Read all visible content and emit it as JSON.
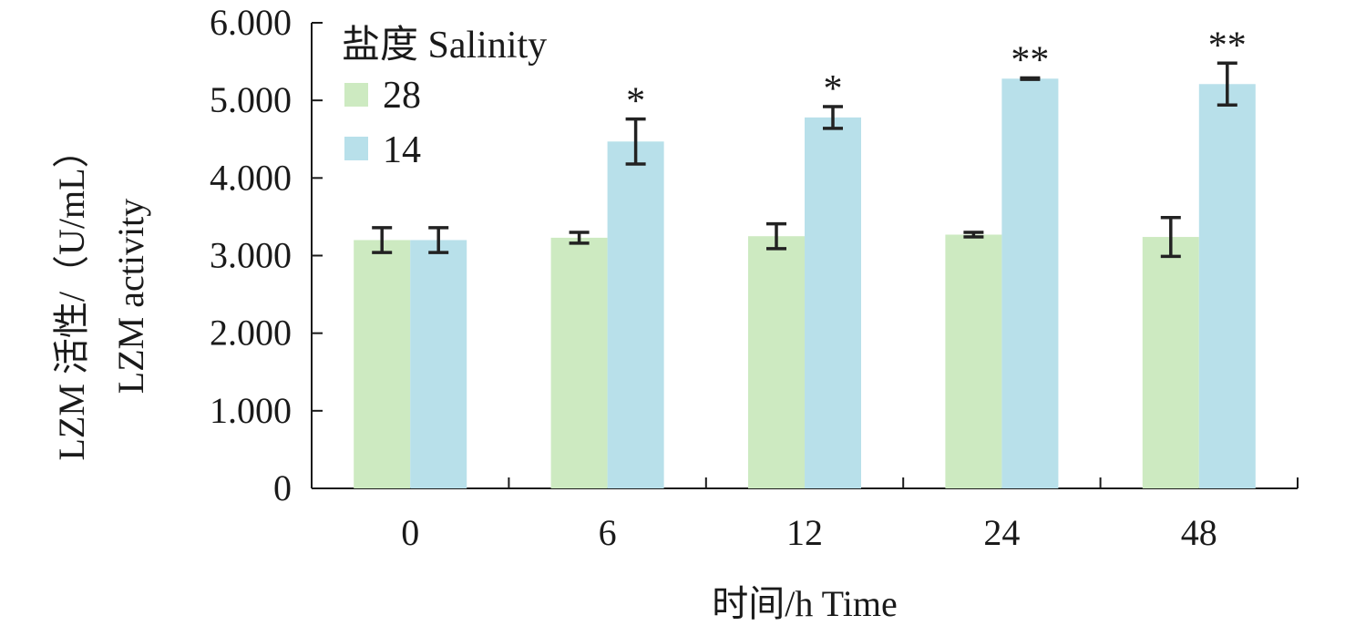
{
  "chart_data": {
    "type": "bar",
    "categories": [
      "0",
      "6",
      "12",
      "24",
      "48"
    ],
    "series": [
      {
        "name": "28",
        "color": "#cdeac1",
        "values": [
          3.2,
          3.23,
          3.25,
          3.27,
          3.24
        ],
        "errors": [
          0.16,
          0.07,
          0.16,
          0.03,
          0.25
        ]
      },
      {
        "name": "14",
        "color": "#b8e0ea",
        "values": [
          3.2,
          4.47,
          4.78,
          5.28,
          5.21
        ],
        "errors": [
          0.16,
          0.29,
          0.14,
          0.01,
          0.27
        ]
      }
    ],
    "significance": [
      "",
      "*",
      "*",
      "**",
      "**"
    ],
    "ylim": [
      0,
      6
    ],
    "yticks": [
      {
        "value": 0,
        "label": "0"
      },
      {
        "value": 1,
        "label": "1.000"
      },
      {
        "value": 2,
        "label": "2.000"
      },
      {
        "value": 3,
        "label": "3.000"
      },
      {
        "value": 4,
        "label": "4.000"
      },
      {
        "value": 5,
        "label": "5.000"
      },
      {
        "value": 6,
        "label": "6.000"
      }
    ],
    "xlabel": "时间/h Time",
    "ylabel_line1": "LZM 活性/（U/mL）",
    "ylabel_line2": "LZM activity",
    "legend_title": "盐度 Salinity",
    "legend_position": "top-left",
    "grid": false
  }
}
